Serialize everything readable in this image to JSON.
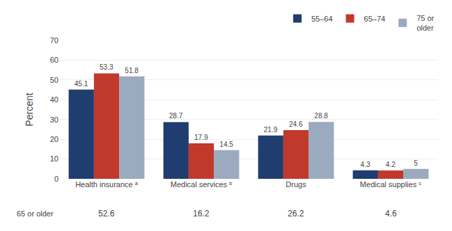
{
  "chart_data": {
    "type": "bar",
    "categories": [
      "Health insurance ᵃ",
      "Medical services ᵇ",
      "Drugs",
      "Medical supplies ᶜ"
    ],
    "series": [
      {
        "name": "55–64",
        "color": "#1f3d6e",
        "values": [
          45.1,
          28.7,
          21.9,
          4.3
        ]
      },
      {
        "name": "65–74",
        "color": "#c0392b",
        "values": [
          53.3,
          17.9,
          24.6,
          4.2
        ]
      },
      {
        "name": "75 or\nolder",
        "color": "#9baabf",
        "values": [
          51.8,
          14.5,
          28.8,
          5.0
        ]
      }
    ],
    "ylabel": "Percent",
    "ylim": [
      0,
      70
    ],
    "yticks": [
      0,
      10,
      20,
      30,
      40,
      50,
      60,
      70
    ],
    "grid": true,
    "legend": "top right",
    "data_labels": true,
    "annotations": [
      {
        "text": "65 or older"
      },
      {
        "text": "52.6",
        "category": "Health insurance ᵃ"
      },
      {
        "text": "16.2",
        "category": "Medical services ᵇ"
      },
      {
        "text": "26.2",
        "category": "Drugs"
      },
      {
        "text": "4.6",
        "category": "Medical supplies ᶜ"
      }
    ]
  }
}
